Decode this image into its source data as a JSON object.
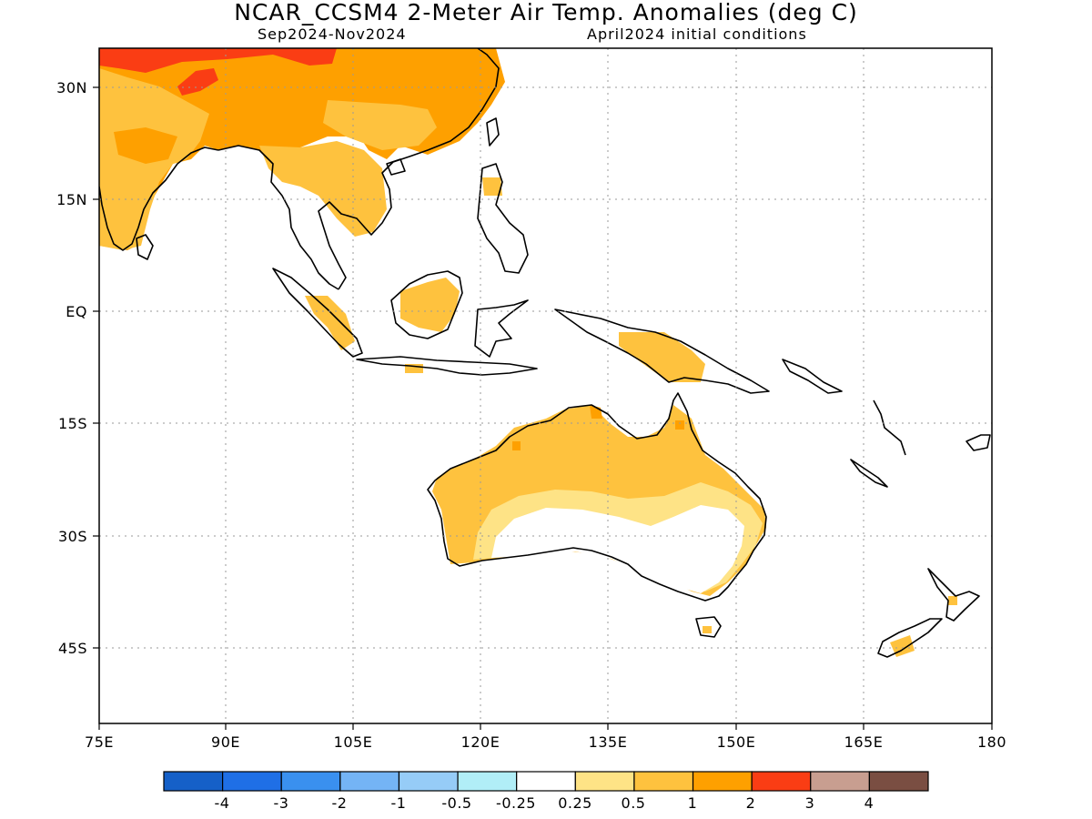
{
  "header": {
    "title": "NCAR_CCSM4 2-Meter Air Temp. Anomalies (deg C)",
    "period": "Sep2024-Nov2024",
    "init": "April2024 initial conditions"
  },
  "map": {
    "lon_labels": [
      "75E",
      "90E",
      "105E",
      "120E",
      "135E",
      "150E",
      "165E",
      "180"
    ],
    "lat_labels": [
      "30N",
      "15N",
      "EQ",
      "15S",
      "30S",
      "45S"
    ]
  },
  "colorbar": {
    "colors": [
      "#1560c8",
      "#1f6fe6",
      "#3a90ef",
      "#74b4f5",
      "#96ccf7",
      "#b1eef7",
      "#ffffff",
      "#fee386",
      "#fec23e",
      "#fea000",
      "#fa3d14",
      "#c89e90",
      "#7a4e42"
    ],
    "labels": [
      "-4",
      "-3",
      "-2",
      "-1",
      "-0.5",
      "-0.25",
      "0.25",
      "0.5",
      "1",
      "2",
      "3",
      "4"
    ]
  },
  "palette": {
    "light_yellow": "#fee386",
    "light_orange": "#fec23e",
    "orange": "#fea000",
    "red": "#fa3d14",
    "coast": "#000000"
  }
}
